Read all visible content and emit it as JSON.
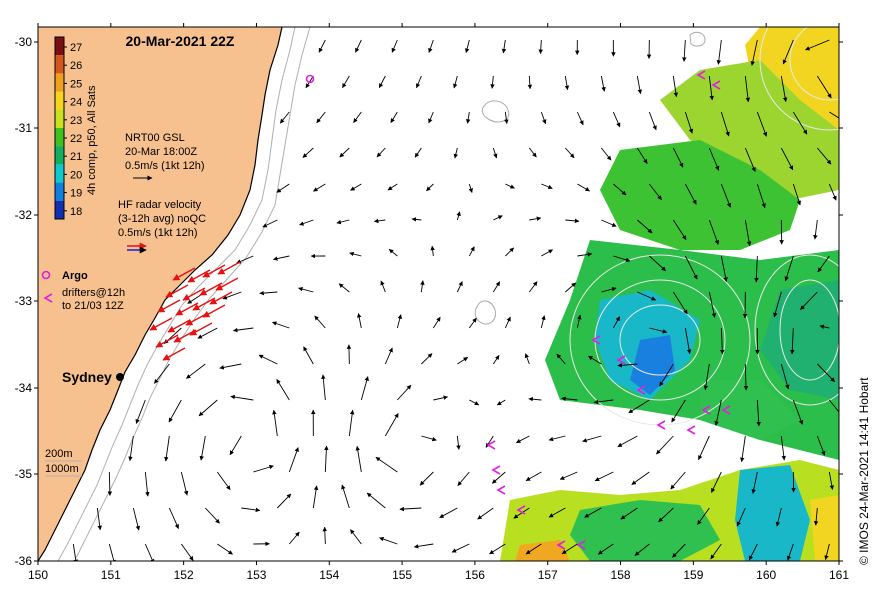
{
  "title": "20-Mar-2021 22Z",
  "credit": "© IMOS 24-Mar-2021 14:41 Hobart",
  "colorbar": {
    "label": "4h comp, p50, All Sats",
    "ticks": [
      "27",
      "26",
      "25",
      "24",
      "23",
      "22",
      "21",
      "20",
      "19",
      "18"
    ],
    "colors": [
      "#7a0f0f",
      "#d4551f",
      "#f0a020",
      "#f5d520",
      "#c8e020",
      "#40c020",
      "#10b060",
      "#10c8d0",
      "#1080e0",
      "#1030b0"
    ]
  },
  "altimetry_legend": {
    "line1": "NRT00 GSL",
    "line2": "20-Mar 18:00Z",
    "line3": "0.5m/s (1kt 12h)"
  },
  "radar_legend": {
    "line1": "HF radar velocity",
    "line2": "(3-12h avg) noQC",
    "line3": "0.5m/s (1kt 12h)"
  },
  "argo_legend": {
    "label": "Argo"
  },
  "drifter_legend": {
    "line1": "drifters@12h",
    "line2": "to 21/03 12Z"
  },
  "city": {
    "name": "Sydney"
  },
  "bathymetry_legend": {
    "line1": "200m",
    "line2": "1000m"
  },
  "axes": {
    "x_ticks": [
      "150",
      "151",
      "152",
      "153",
      "154",
      "155",
      "156",
      "157",
      "158",
      "159",
      "160",
      "161"
    ],
    "y_ticks": [
      "-30",
      "-31",
      "-32",
      "-33",
      "-34",
      "-35",
      "-36"
    ]
  },
  "colors": {
    "land": "#f7c08f",
    "arrow": "#000000",
    "radar_arrow": "#e81010",
    "argo": "#e020e0",
    "drifter": "#e020e0"
  }
}
